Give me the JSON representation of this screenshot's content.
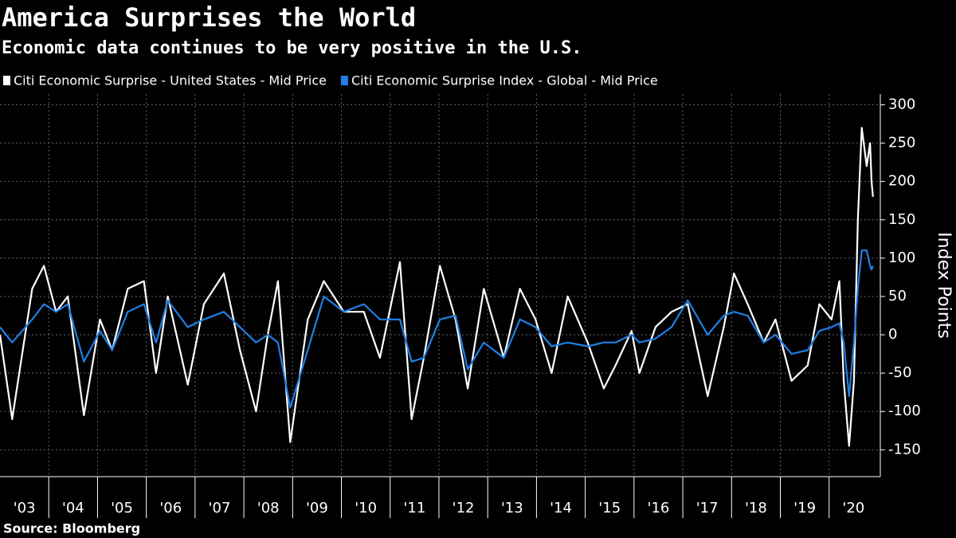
{
  "chart_data": {
    "type": "line",
    "title": "America Surprises the World",
    "subtitle": "Economic data continues to be very positive in the U.S.",
    "y_axis_label": "Index Points",
    "source": "Source: Bloomberg",
    "x": [
      2003.0,
      2003.25,
      2003.66,
      2003.9,
      2004.15,
      2004.39,
      2004.72,
      2005.05,
      2005.3,
      2005.62,
      2005.95,
      2006.2,
      2006.44,
      2006.85,
      2007.18,
      2007.59,
      2007.92,
      2008.25,
      2008.49,
      2008.7,
      2008.95,
      2009.31,
      2009.64,
      2010.05,
      2010.46,
      2010.79,
      2011.2,
      2011.44,
      2011.69,
      2012.02,
      2012.34,
      2012.59,
      2012.92,
      2013.33,
      2013.66,
      2013.98,
      2014.31,
      2014.64,
      2015.05,
      2015.38,
      2015.62,
      2015.95,
      2016.11,
      2016.44,
      2016.77,
      2017.1,
      2017.51,
      2017.84,
      2018.05,
      2018.33,
      2018.66,
      2018.9,
      2019.23,
      2019.56,
      2019.8,
      2020.05,
      2020.21,
      2020.3,
      2020.41,
      2020.51,
      2020.59,
      2020.67,
      2020.77,
      2020.84,
      2020.87,
      2020.9
    ],
    "series": [
      {
        "name": "Citi Economic Surprise - United States - Mid Price",
        "color": "#ffffff",
        "values": [
          0,
          -110,
          60,
          90,
          30,
          50,
          -105,
          20,
          -20,
          60,
          70,
          -50,
          50,
          -65,
          40,
          80,
          -20,
          -100,
          0,
          70,
          -140,
          20,
          70,
          30,
          30,
          -30,
          95,
          -110,
          -30,
          90,
          20,
          -70,
          60,
          -30,
          60,
          20,
          -50,
          50,
          -10,
          -70,
          -40,
          5,
          -50,
          10,
          30,
          40,
          -80,
          10,
          80,
          40,
          -10,
          20,
          -60,
          -40,
          40,
          20,
          70,
          -60,
          -145,
          -60,
          150,
          270,
          220,
          250,
          200,
          180
        ]
      },
      {
        "name": "Citi Economic Surprise Index - Global - Mid Price",
        "color": "#1f7fe6",
        "values": [
          10,
          -10,
          20,
          40,
          30,
          40,
          -35,
          5,
          -20,
          30,
          40,
          -10,
          45,
          10,
          20,
          30,
          10,
          -10,
          0,
          -10,
          -95,
          -20,
          50,
          30,
          40,
          20,
          20,
          -35,
          -30,
          20,
          25,
          -45,
          -10,
          -30,
          20,
          10,
          -15,
          -10,
          -15,
          -10,
          -10,
          0,
          -10,
          -5,
          10,
          45,
          0,
          25,
          30,
          25,
          -10,
          0,
          -25,
          -20,
          5,
          10,
          15,
          -10,
          -80,
          -10,
          60,
          110,
          110,
          90,
          85,
          90
        ]
      }
    ],
    "xlim": [
      2003,
      2021.05
    ],
    "xticks": [
      {
        "value": 2003,
        "label": "'03"
      },
      {
        "value": 2004,
        "label": "'04"
      },
      {
        "value": 2005,
        "label": "'05"
      },
      {
        "value": 2006,
        "label": "'06"
      },
      {
        "value": 2007,
        "label": "'07"
      },
      {
        "value": 2008,
        "label": "'08"
      },
      {
        "value": 2009,
        "label": "'09"
      },
      {
        "value": 2010,
        "label": "'10"
      },
      {
        "value": 2011,
        "label": "'11"
      },
      {
        "value": 2012,
        "label": "'12"
      },
      {
        "value": 2013,
        "label": "'13"
      },
      {
        "value": 2014,
        "label": "'14"
      },
      {
        "value": 2015,
        "label": "'15"
      },
      {
        "value": 2016,
        "label": "'16"
      },
      {
        "value": 2017,
        "label": "'17"
      },
      {
        "value": 2018,
        "label": "'18"
      },
      {
        "value": 2019,
        "label": "'19"
      },
      {
        "value": 2020,
        "label": "'20"
      }
    ],
    "ylim": [
      -185,
      314
    ],
    "yticks": [
      -150,
      -100,
      -50,
      0,
      50,
      100,
      150,
      200,
      250,
      300
    ],
    "grid": true
  }
}
